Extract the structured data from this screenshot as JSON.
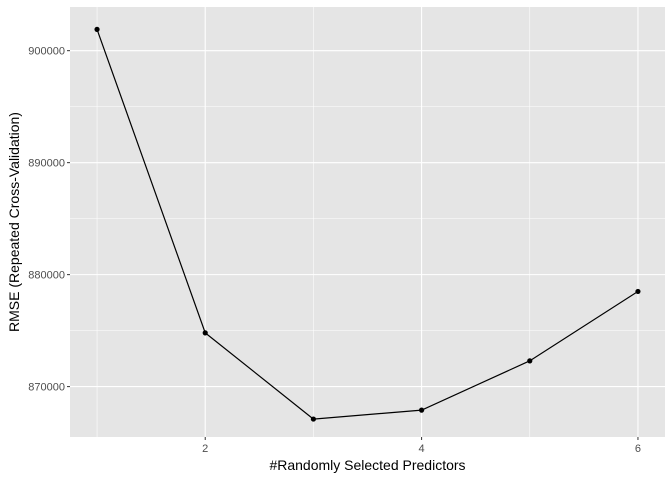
{
  "chart_data": {
    "type": "line",
    "title": "",
    "xlabel": "#Randomly Selected Predictors",
    "ylabel": "RMSE (Repeated Cross-Validation)",
    "x": [
      1,
      2,
      3,
      4,
      5,
      6
    ],
    "series": [
      {
        "values": [
          901900,
          874800,
          867100,
          867900,
          872300,
          878500
        ]
      }
    ],
    "xlim": [
      0.75,
      6.25
    ],
    "ylim": [
      865500,
      903900
    ],
    "x_ticks": [
      2,
      4,
      6
    ],
    "x_tick_labels": [
      "2",
      "4",
      "6"
    ],
    "y_ticks": [
      870000,
      880000,
      890000,
      900000
    ],
    "y_tick_labels": [
      "870000",
      "880000",
      "890000",
      "900000"
    ],
    "grid": true,
    "legend": "none",
    "colors": {
      "panel_background": "#e5e5e5",
      "grid": "#ffffff",
      "line": "#000000",
      "points": "#000000",
      "tick_text": "#4d4d4d"
    }
  }
}
